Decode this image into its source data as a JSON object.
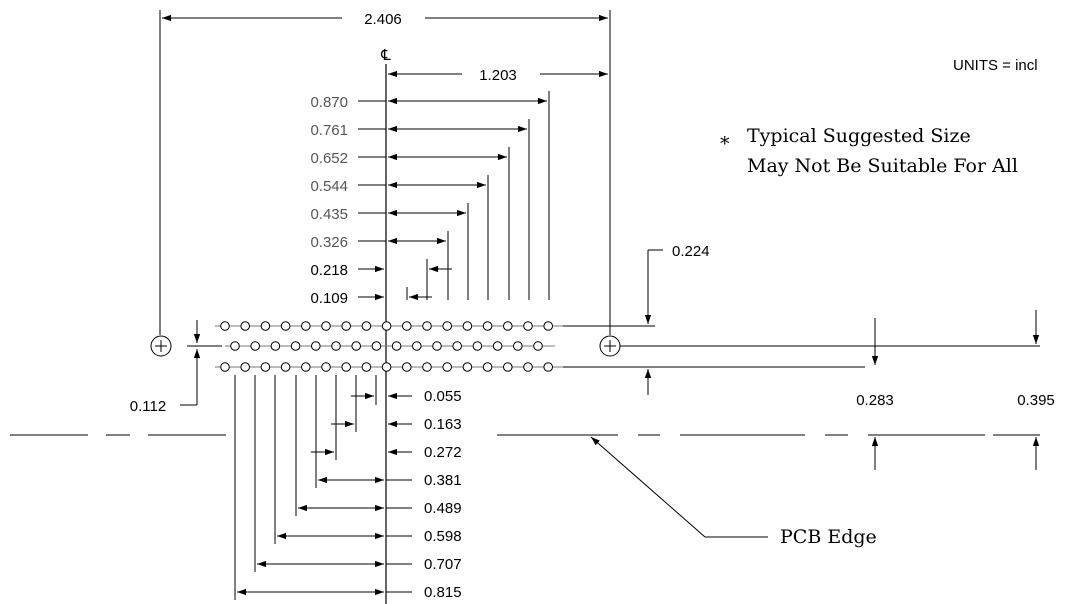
{
  "units_note": "UNITS = incl",
  "centerline_symbol": "℄",
  "overall_width": "2.406",
  "half_width": "1.203",
  "top_row_offsets": [
    "0.870",
    "0.761",
    "0.652",
    "0.544",
    "0.435",
    "0.326",
    "0.218",
    "0.109"
  ],
  "bottom_row_offsets": [
    "0.055",
    "0.163",
    "0.272",
    "0.381",
    "0.489",
    "0.598",
    "0.707",
    "0.815"
  ],
  "row_pitch": "0.112",
  "mount_hole_offset": "0.224",
  "pcb_dims": [
    "0.283",
    "0.395"
  ],
  "note_asterisk": "*",
  "note_line1": "Typical Suggested Size",
  "note_line2": "May Not Be Suitable For All",
  "pcb_edge_label": "PCB Edge",
  "pin_rows": {
    "top": {
      "count": 17,
      "x_start": 225,
      "pitch": 20.2
    },
    "middle": {
      "count": 16,
      "x_start": 235,
      "pitch": 20.2
    },
    "bottom": {
      "count": 17,
      "x_start": 225,
      "pitch": 20.2
    }
  }
}
